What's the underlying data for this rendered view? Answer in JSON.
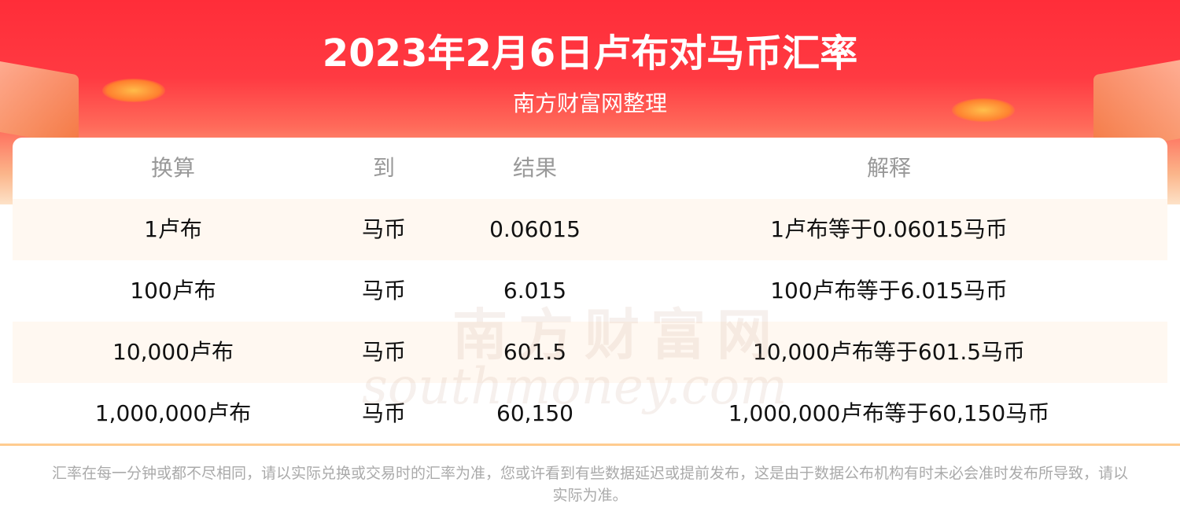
{
  "header": {
    "title": "2023年2月6日卢布对马币汇率",
    "subtitle": "南方财富网整理"
  },
  "table": {
    "columns": [
      "换算",
      "到",
      "结果",
      "解释"
    ],
    "rows": [
      [
        "1卢布",
        "马币",
        "0.06015",
        "1卢布等于0.06015马币"
      ],
      [
        "100卢布",
        "马币",
        "6.015",
        "100卢布等于6.015马币"
      ],
      [
        "10,000卢布",
        "马币",
        "601.5",
        "10,000卢布等于601.5马币"
      ],
      [
        "1,000,000卢布",
        "马币",
        "60,150",
        "1,000,000卢布等于60,150马币"
      ]
    ]
  },
  "watermark": {
    "cn": "南方财富网",
    "en": "southmoney.com"
  },
  "footer": {
    "note": "汇率在每一分钟或都不尽相同，请以实际兑换或交易时的汇率为准，您或许看到有些数据延迟或提前发布，这是由于数据公布机构有时未必会准时发布所导致，请以实际为准。"
  },
  "colors": {
    "banner": "#ff2d39",
    "row_alt": "#fff8f1",
    "divider": "#ffcc8f"
  }
}
